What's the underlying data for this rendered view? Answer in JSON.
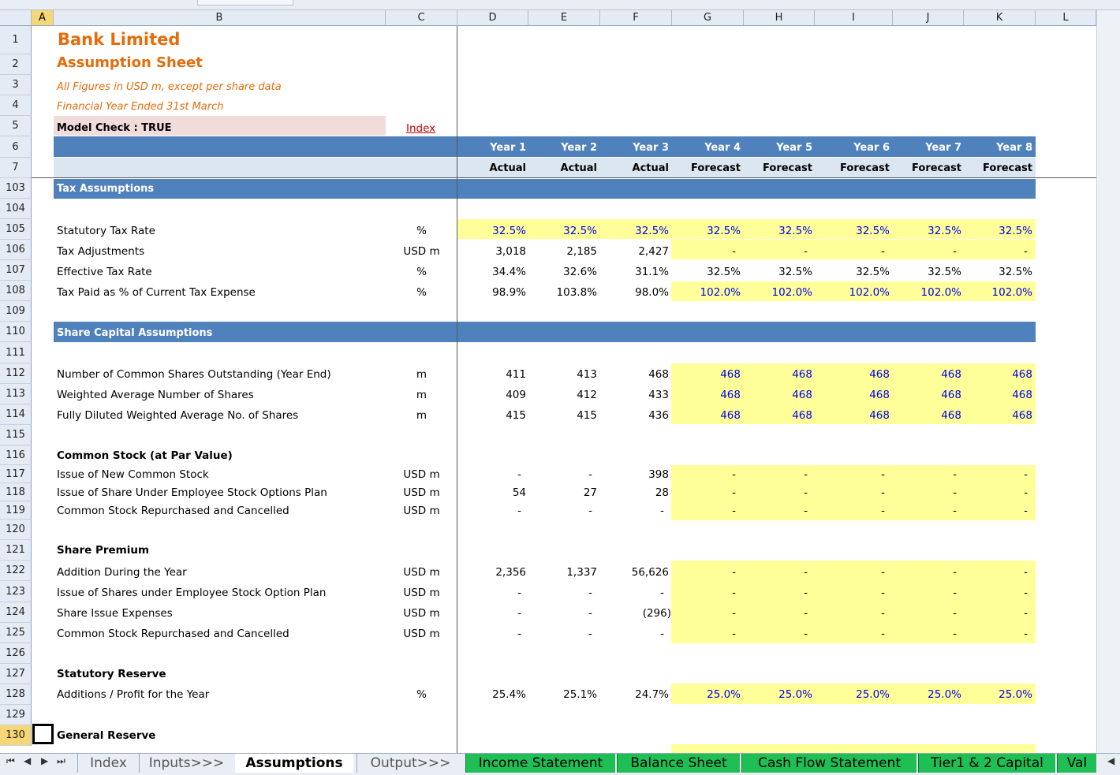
{
  "sheet": {
    "columns": [
      "A",
      "B",
      "C",
      "D",
      "E",
      "F",
      "G",
      "H",
      "I",
      "J",
      "K",
      "L"
    ],
    "selected_column": "A",
    "rows": [
      "1",
      "2",
      "3",
      "4",
      "5",
      "6",
      "7",
      "103",
      "104",
      "105",
      "106",
      "107",
      "108",
      "109",
      "110",
      "111",
      "112",
      "113",
      "114",
      "115",
      "116",
      "117",
      "118",
      "119",
      "120",
      "121",
      "122",
      "123",
      "124",
      "125",
      "126",
      "127",
      "128",
      "129",
      "130"
    ],
    "selected_row": "130"
  },
  "header": {
    "title": "Bank Limited",
    "subtitle": "Assumption Sheet",
    "note1": "All Figures in USD m, except per share data",
    "note2": "Financial Year Ended 31st March",
    "model_check": "Model Check : TRUE",
    "index_link": "Index",
    "years": [
      "Year 1",
      "Year 2",
      "Year 3",
      "Year 4",
      "Year 5",
      "Year 6",
      "Year 7",
      "Year 8"
    ],
    "types": [
      "Actual",
      "Actual",
      "Actual",
      "Forecast",
      "Forecast",
      "Forecast",
      "Forecast",
      "Forecast"
    ]
  },
  "sections": {
    "tax": "Tax Assumptions",
    "share_capital": "Share Capital Assumptions",
    "common_stock": "Common Stock (at Par Value)",
    "share_premium": "Share Premium",
    "statutory_reserve": "Statutory Reserve",
    "general_reserve": "General Reserve"
  },
  "lines": [
    {
      "label": "Statutory Tax Rate",
      "unit": "%",
      "values": [
        "32.5%",
        "32.5%",
        "32.5%",
        "32.5%",
        "32.5%",
        "32.5%",
        "32.5%",
        "32.5%"
      ]
    },
    {
      "label": "Tax Adjustments",
      "unit": "USD m",
      "values": [
        "3,018",
        "2,185",
        "2,427",
        "-",
        "-",
        "-",
        "-",
        "-"
      ]
    },
    {
      "label": "Effective Tax Rate",
      "unit": "%",
      "values": [
        "34.4%",
        "32.6%",
        "31.1%",
        "32.5%",
        "32.5%",
        "32.5%",
        "32.5%",
        "32.5%"
      ]
    },
    {
      "label": "Tax Paid as % of Current Tax Expense",
      "unit": "%",
      "values": [
        "98.9%",
        "103.8%",
        "98.0%",
        "102.0%",
        "102.0%",
        "102.0%",
        "102.0%",
        "102.0%"
      ]
    },
    {
      "label": "Number of Common Shares Outstanding (Year End)",
      "unit": "m",
      "values": [
        "411",
        "413",
        "468",
        "468",
        "468",
        "468",
        "468",
        "468"
      ]
    },
    {
      "label": "Weighted Average Number of Shares",
      "unit": "m",
      "values": [
        "409",
        "412",
        "433",
        "468",
        "468",
        "468",
        "468",
        "468"
      ]
    },
    {
      "label": "Fully Diluted Weighted Average No. of Shares",
      "unit": "m",
      "values": [
        "415",
        "415",
        "436",
        "468",
        "468",
        "468",
        "468",
        "468"
      ]
    },
    {
      "label": "Issue of New Common Stock",
      "unit": "USD m",
      "values": [
        "-",
        "-",
        "398",
        "-",
        "-",
        "-",
        "-",
        "-"
      ]
    },
    {
      "label": "Issue of Share Under Employee Stock Options Plan",
      "unit": "USD m",
      "values": [
        "54",
        "27",
        "28",
        "-",
        "-",
        "-",
        "-",
        "-"
      ]
    },
    {
      "label": "Common Stock Repurchased and Cancelled",
      "unit": "USD m",
      "values": [
        "-",
        "-",
        "-",
        "-",
        "-",
        "-",
        "-",
        "-"
      ]
    },
    {
      "label": "Addition During the Year",
      "unit": "USD m",
      "values": [
        "2,356",
        "1,337",
        "56,626",
        "-",
        "-",
        "-",
        "-",
        "-"
      ]
    },
    {
      "label": "Issue of Shares under Employee Stock Option Plan",
      "unit": "USD m",
      "values": [
        "-",
        "-",
        "-",
        "-",
        "-",
        "-",
        "-",
        "-"
      ]
    },
    {
      "label": "Share Issue Expenses",
      "unit": "USD m",
      "values": [
        "-",
        "-",
        "(296)",
        "-",
        "-",
        "-",
        "-",
        "-"
      ]
    },
    {
      "label": "Common Stock Repurchased and Cancelled",
      "unit": "USD m",
      "values": [
        "-",
        "-",
        "-",
        "-",
        "-",
        "-",
        "-",
        "-"
      ]
    },
    {
      "label": "Additions / Profit for the Year",
      "unit": "%",
      "values": [
        "25.4%",
        "25.1%",
        "24.7%",
        "25.0%",
        "25.0%",
        "25.0%",
        "25.0%",
        "25.0%"
      ]
    }
  ],
  "tabs": {
    "items": [
      "Index",
      "Inputs>>>",
      "Assumptions",
      "Output>>>",
      "Income Statement",
      "Balance Sheet",
      "Cash Flow Statement",
      "Tier1 & 2 Capital",
      "Val"
    ],
    "active": "Assumptions"
  },
  "colors": {
    "header_band": "#4f81bd",
    "subheader_band": "#dce6f1",
    "input_fill": "#ffff99",
    "title_orange": "#e46c0a",
    "input_font": "#0000e6",
    "output_tab": "#1fbf55"
  }
}
